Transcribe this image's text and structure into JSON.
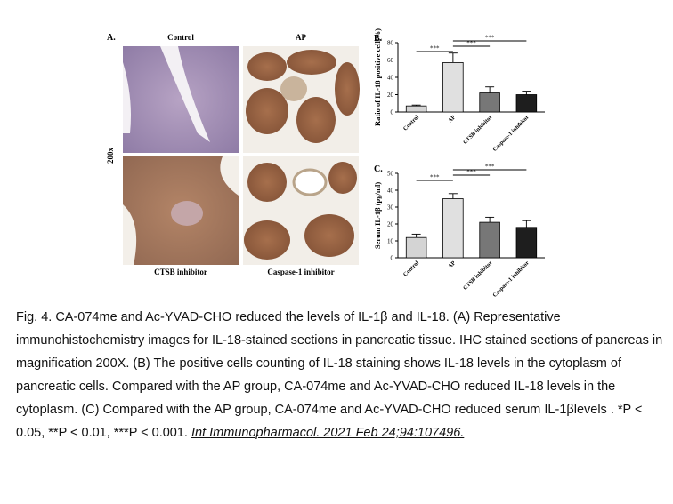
{
  "panel_a": {
    "label": "A.",
    "magnification": "200x",
    "image_labels": [
      "Control",
      "AP",
      "CTSB inhibitor",
      "Caspase-1 inhibitor"
    ]
  },
  "chart_data": [
    {
      "type": "bar",
      "label": "B.",
      "y_label": "Ratio of IL-18 positive cell(%)",
      "categories": [
        "Control",
        "AP",
        "CTSB inhibitor",
        "Caspase-1 inhibitor"
      ],
      "values": [
        7,
        57,
        22,
        20
      ],
      "errors": [
        1,
        11,
        7,
        4
      ],
      "colors": [
        "#d4d4d4",
        "#e0e0e0",
        "#777777",
        "#1e1e1e"
      ],
      "ylim": [
        0,
        80
      ],
      "yticks": [
        0,
        20,
        40,
        60,
        80
      ],
      "annotations": [
        "***",
        "***",
        "***"
      ]
    },
    {
      "type": "bar",
      "label": "C.",
      "y_label": "Serum IL-1β (pg/ml)",
      "categories": [
        "Control",
        "AP",
        "CTSB inhibitor",
        "Caspase-1 inhibitor"
      ],
      "values": [
        12,
        35,
        21,
        18
      ],
      "errors": [
        2,
        3,
        3,
        4
      ],
      "colors": [
        "#d4d4d4",
        "#e0e0e0",
        "#777777",
        "#1e1e1e"
      ],
      "ylim": [
        0,
        50
      ],
      "yticks": [
        0,
        10,
        20,
        30,
        40,
        50
      ],
      "annotations": [
        "***",
        "***",
        "***"
      ]
    }
  ],
  "caption": {
    "text": "Fig. 4. CA-074me and Ac-YVAD-CHO reduced the levels of IL-1β and IL-18. (A) Representative immunohistochemistry images for IL-18-stained sections in pancreatic tissue. IHC stained sections of pancreas in magnification 200X. (B) The positive cells counting of IL-18 staining shows IL-18 levels in the cytoplasm of pancreatic cells. Compared with the AP group, CA-074me and Ac-YVAD-CHO reduced IL-18 levels in the cytoplasm. (C) Compared with the AP group, CA-074me and Ac-YVAD-CHO reduced serum IL-1βlevels . *P < 0.05, **P < 0.01, ***P < 0.001.",
    "citation": "Int Immunopharmacol. 2021 Feb 24;94:107496."
  }
}
